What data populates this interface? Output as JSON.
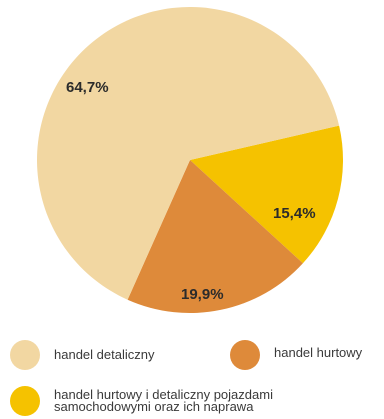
{
  "chart_data": {
    "type": "pie",
    "slices": [
      {
        "label": "handel detaliczny",
        "value": 64.7,
        "value_text": "64,7%",
        "color": "#f2d7a2"
      },
      {
        "label": "handel hurtowy",
        "value": 19.9,
        "value_text": "19,9%",
        "color": "#de8a3a"
      },
      {
        "label": "handel hurtowy i detaliczny pojazdami samochodowymi oraz ich naprawa",
        "value": 15.4,
        "value_text": "15,4%",
        "color": "#f5c200"
      }
    ],
    "legend_position": "bottom"
  },
  "legend": {
    "items": [
      {
        "label": "handel detaliczny",
        "color": "#f2d7a2"
      },
      {
        "label": "handel hurtowy",
        "color": "#de8a3a"
      },
      {
        "label": "handel hurtowy i detaliczny pojazdami\nsamochodowymi oraz ich naprawa",
        "color": "#f5c200"
      }
    ]
  }
}
